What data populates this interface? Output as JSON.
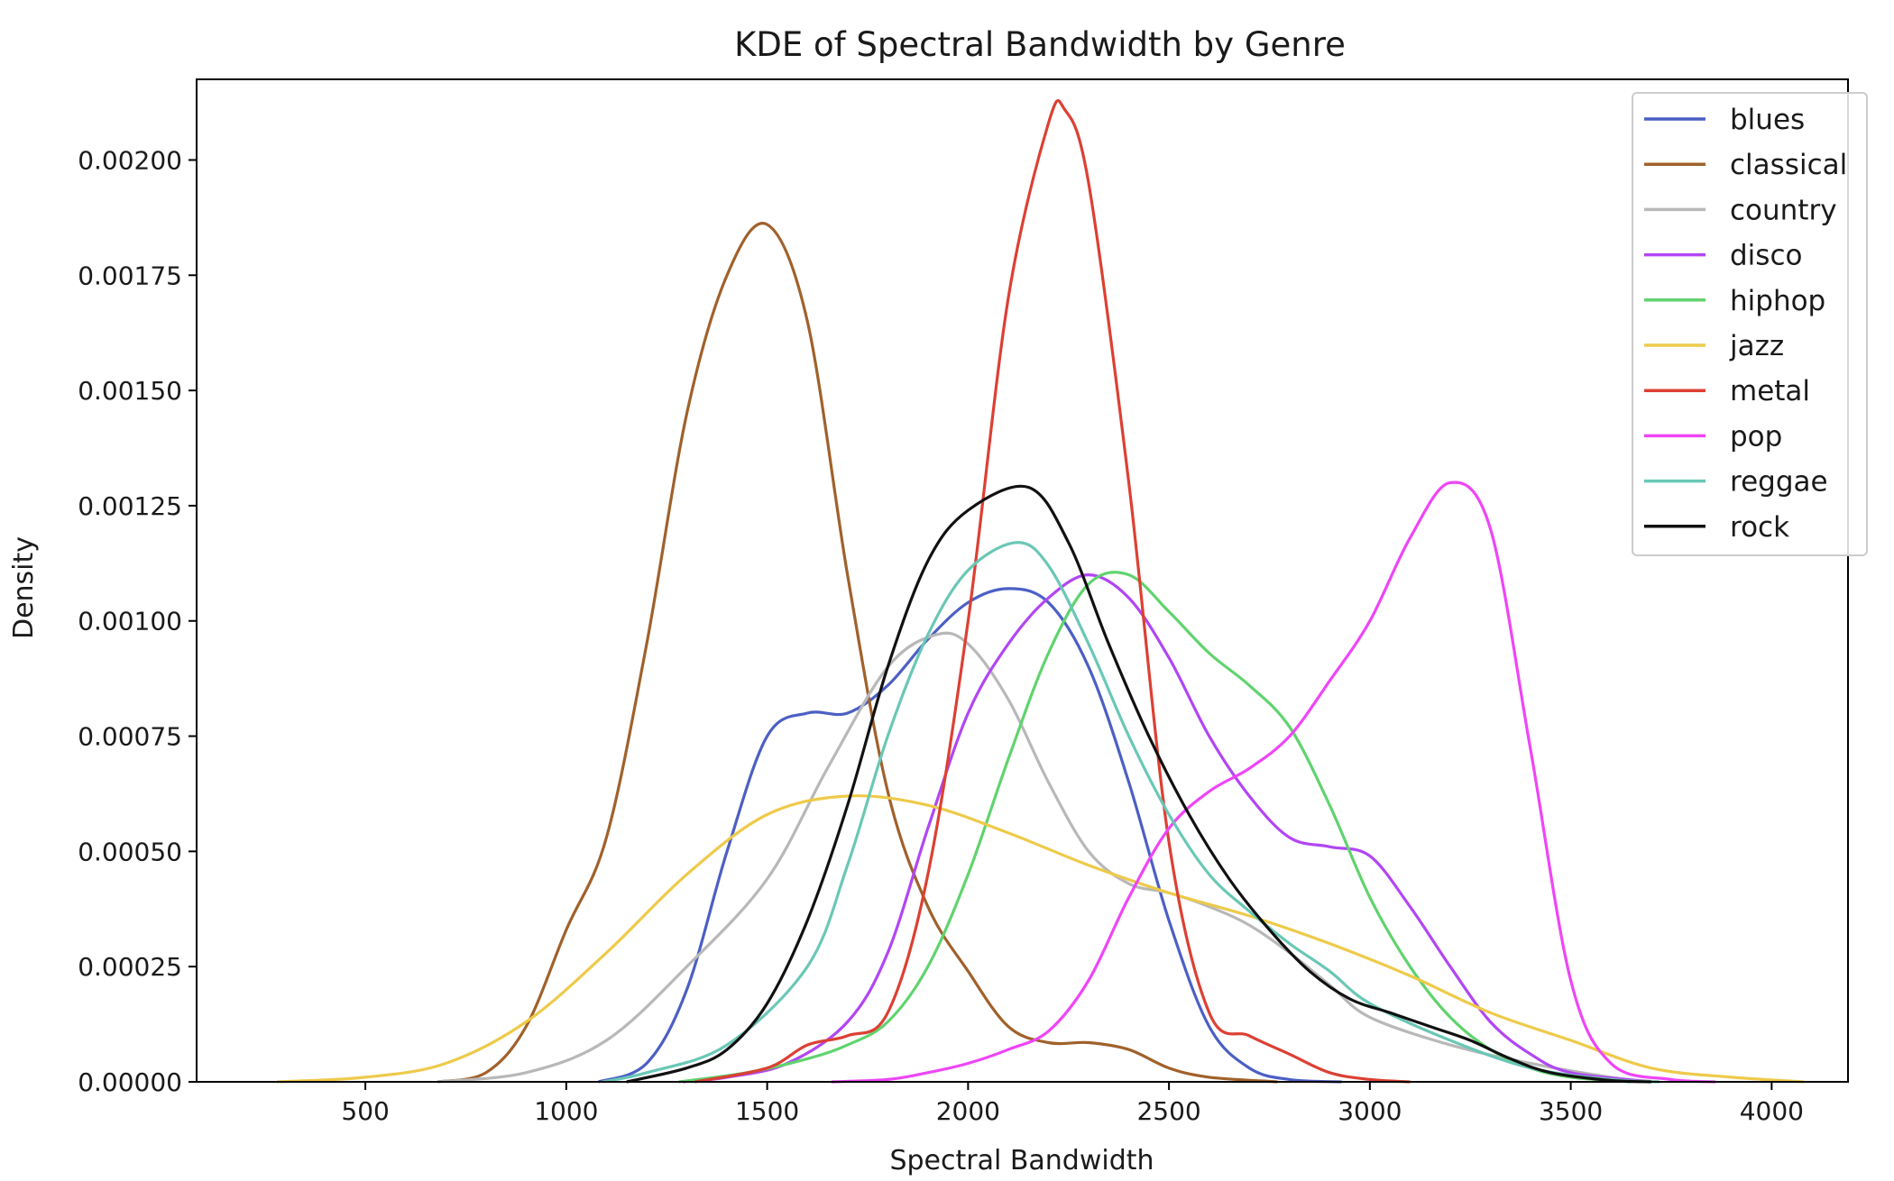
{
  "chart_data": {
    "type": "line",
    "title": "KDE of Spectral Bandwidth by Genre",
    "xlabel": "Spectral Bandwidth",
    "ylabel": "Density",
    "xlim": [
      80,
      4190
    ],
    "ylim": [
      0,
      0.002175
    ],
    "xticks": [
      500,
      1000,
      1500,
      2000,
      2500,
      3000,
      3500,
      4000
    ],
    "xtick_labels": [
      "500",
      "1000",
      "1500",
      "2000",
      "2500",
      "3000",
      "3500",
      "4000"
    ],
    "yticks": [
      0,
      0.00025,
      0.0005,
      0.00075,
      0.001,
      0.00125,
      0.0015,
      0.00175,
      0.002
    ],
    "ytick_labels": [
      "0.00000",
      "0.00025",
      "0.00050",
      "0.00075",
      "0.00100",
      "0.00125",
      "0.00150",
      "0.00175",
      "0.00200"
    ],
    "grid": false,
    "legend_position": "top-right",
    "series": [
      {
        "name": "blues",
        "color": "#4c5fc4",
        "points": [
          [
            1080,
            0
          ],
          [
            1200,
            4e-05
          ],
          [
            1300,
            0.0002
          ],
          [
            1400,
            0.0005
          ],
          [
            1500,
            0.00075
          ],
          [
            1600,
            0.0008
          ],
          [
            1700,
            0.0008
          ],
          [
            1800,
            0.00086
          ],
          [
            1900,
            0.00096
          ],
          [
            2000,
            0.00104
          ],
          [
            2100,
            0.00107
          ],
          [
            2200,
            0.00104
          ],
          [
            2300,
            0.0009
          ],
          [
            2400,
            0.00065
          ],
          [
            2500,
            0.00035
          ],
          [
            2600,
            0.00012
          ],
          [
            2700,
            3e-05
          ],
          [
            2800,
            5e-06
          ],
          [
            2930,
            0
          ]
        ]
      },
      {
        "name": "classical",
        "color": "#a0612b",
        "points": [
          [
            680,
            0
          ],
          [
            800,
            2e-05
          ],
          [
            900,
            0.00012
          ],
          [
            1000,
            0.00033
          ],
          [
            1100,
            0.00053
          ],
          [
            1200,
            0.00095
          ],
          [
            1300,
            0.00145
          ],
          [
            1400,
            0.00175
          ],
          [
            1500,
            0.00186
          ],
          [
            1600,
            0.00165
          ],
          [
            1700,
            0.0011
          ],
          [
            1800,
            0.00063
          ],
          [
            1900,
            0.00038
          ],
          [
            2000,
            0.00024
          ],
          [
            2100,
            0.00012
          ],
          [
            2200,
            8.5e-05
          ],
          [
            2300,
            8.5e-05
          ],
          [
            2400,
            7e-05
          ],
          [
            2500,
            3e-05
          ],
          [
            2600,
            1e-05
          ],
          [
            2770,
            0
          ]
        ]
      },
      {
        "name": "country",
        "color": "#b8b8b8",
        "points": [
          [
            680,
            0
          ],
          [
            900,
            2e-05
          ],
          [
            1100,
            9e-05
          ],
          [
            1300,
            0.00025
          ],
          [
            1500,
            0.00044
          ],
          [
            1650,
            0.00068
          ],
          [
            1800,
            0.0009
          ],
          [
            1920,
            0.00097
          ],
          [
            2000,
            0.00095
          ],
          [
            2100,
            0.00083
          ],
          [
            2200,
            0.00065
          ],
          [
            2300,
            0.0005
          ],
          [
            2400,
            0.00043
          ],
          [
            2500,
            0.00041
          ],
          [
            2600,
            0.00038
          ],
          [
            2700,
            0.00034
          ],
          [
            2800,
            0.00028
          ],
          [
            2900,
            0.00021
          ],
          [
            3000,
            0.00014
          ],
          [
            3200,
            8e-05
          ],
          [
            3400,
            4e-05
          ],
          [
            3600,
            1e-05
          ],
          [
            3720,
            0
          ]
        ]
      },
      {
        "name": "disco",
        "color": "#b146f4",
        "points": [
          [
            1290,
            0
          ],
          [
            1400,
            1e-05
          ],
          [
            1550,
            4e-05
          ],
          [
            1700,
            0.00013
          ],
          [
            1800,
            0.00028
          ],
          [
            1900,
            0.00055
          ],
          [
            2000,
            0.0008
          ],
          [
            2100,
            0.00095
          ],
          [
            2200,
            0.00105
          ],
          [
            2300,
            0.0011
          ],
          [
            2400,
            0.00105
          ],
          [
            2500,
            0.00092
          ],
          [
            2600,
            0.00075
          ],
          [
            2700,
            0.00062
          ],
          [
            2800,
            0.00053
          ],
          [
            2900,
            0.00051
          ],
          [
            3000,
            0.00049
          ],
          [
            3100,
            0.00038
          ],
          [
            3200,
            0.00025
          ],
          [
            3300,
            0.00013
          ],
          [
            3400,
            6e-05
          ],
          [
            3500,
            2e-05
          ],
          [
            3700,
            0
          ]
        ]
      },
      {
        "name": "hiphop",
        "color": "#60d36e",
        "points": [
          [
            1280,
            0
          ],
          [
            1450,
            2e-05
          ],
          [
            1600,
            5e-05
          ],
          [
            1700,
            8e-05
          ],
          [
            1800,
            0.00013
          ],
          [
            1900,
            0.00025
          ],
          [
            2000,
            0.00045
          ],
          [
            2100,
            0.0007
          ],
          [
            2200,
            0.00093
          ],
          [
            2300,
            0.00108
          ],
          [
            2400,
            0.0011
          ],
          [
            2500,
            0.00102
          ],
          [
            2600,
            0.00093
          ],
          [
            2700,
            0.00086
          ],
          [
            2800,
            0.00077
          ],
          [
            2900,
            0.0006
          ],
          [
            3000,
            0.0004
          ],
          [
            3100,
            0.00025
          ],
          [
            3200,
            0.00014
          ],
          [
            3300,
            7e-05
          ],
          [
            3400,
            3e-05
          ],
          [
            3500,
            1e-05
          ],
          [
            3650,
            0
          ]
        ]
      },
      {
        "name": "jazz",
        "color": "#eeca4a",
        "points": [
          [
            280,
            0
          ],
          [
            500,
            1e-05
          ],
          [
            700,
            4e-05
          ],
          [
            900,
            0.00013
          ],
          [
            1100,
            0.00028
          ],
          [
            1300,
            0.00045
          ],
          [
            1500,
            0.00058
          ],
          [
            1700,
            0.00062
          ],
          [
            1900,
            0.0006
          ],
          [
            2100,
            0.00054
          ],
          [
            2300,
            0.00047
          ],
          [
            2500,
            0.00041
          ],
          [
            2700,
            0.00036
          ],
          [
            2900,
            0.0003
          ],
          [
            3100,
            0.00023
          ],
          [
            3300,
            0.00015
          ],
          [
            3500,
            9e-05
          ],
          [
            3700,
            3e-05
          ],
          [
            3900,
            1e-05
          ],
          [
            4080,
            0
          ]
        ]
      },
      {
        "name": "metal",
        "color": "#dc4033",
        "points": [
          [
            1320,
            0
          ],
          [
            1500,
            3e-05
          ],
          [
            1600,
            8e-05
          ],
          [
            1700,
            0.0001
          ],
          [
            1800,
            0.00015
          ],
          [
            1900,
            0.00045
          ],
          [
            2000,
            0.001
          ],
          [
            2100,
            0.0017
          ],
          [
            2200,
            0.00208
          ],
          [
            2240,
            0.00211
          ],
          [
            2300,
            0.00195
          ],
          [
            2400,
            0.0013
          ],
          [
            2500,
            0.00052
          ],
          [
            2600,
            0.00015
          ],
          [
            2700,
            0.0001
          ],
          [
            2800,
            6e-05
          ],
          [
            2900,
            2e-05
          ],
          [
            3000,
            5e-06
          ],
          [
            3100,
            0
          ]
        ]
      },
      {
        "name": "pop",
        "color": "#ee45f7",
        "points": [
          [
            1660,
            0
          ],
          [
            1800,
            5e-06
          ],
          [
            1900,
            2e-05
          ],
          [
            2000,
            4e-05
          ],
          [
            2100,
            7e-05
          ],
          [
            2200,
            0.00011
          ],
          [
            2300,
            0.00022
          ],
          [
            2400,
            0.0004
          ],
          [
            2500,
            0.00055
          ],
          [
            2600,
            0.00063
          ],
          [
            2700,
            0.00068
          ],
          [
            2800,
            0.00075
          ],
          [
            2900,
            0.00087
          ],
          [
            3000,
            0.001
          ],
          [
            3100,
            0.00118
          ],
          [
            3200,
            0.0013
          ],
          [
            3300,
            0.0012
          ],
          [
            3400,
            0.00072
          ],
          [
            3500,
            0.00022
          ],
          [
            3600,
            4e-05
          ],
          [
            3750,
            5e-06
          ],
          [
            3860,
            0
          ]
        ]
      },
      {
        "name": "reggae",
        "color": "#6ac7b6",
        "points": [
          [
            1090,
            0
          ],
          [
            1200,
            2e-05
          ],
          [
            1400,
            8e-05
          ],
          [
            1600,
            0.00025
          ],
          [
            1700,
            0.00047
          ],
          [
            1800,
            0.00075
          ],
          [
            1900,
            0.00097
          ],
          [
            2000,
            0.00111
          ],
          [
            2120,
            0.00117
          ],
          [
            2200,
            0.00112
          ],
          [
            2300,
            0.00095
          ],
          [
            2400,
            0.00075
          ],
          [
            2500,
            0.00058
          ],
          [
            2600,
            0.00045
          ],
          [
            2700,
            0.00037
          ],
          [
            2800,
            0.0003
          ],
          [
            2900,
            0.00024
          ],
          [
            3000,
            0.00017
          ],
          [
            3200,
            9e-05
          ],
          [
            3400,
            3e-05
          ],
          [
            3600,
            5e-06
          ],
          [
            3720,
            0
          ]
        ]
      },
      {
        "name": "rock",
        "color": "#111111",
        "points": [
          [
            1150,
            0
          ],
          [
            1300,
            3e-05
          ],
          [
            1400,
            7e-05
          ],
          [
            1500,
            0.00017
          ],
          [
            1600,
            0.00035
          ],
          [
            1700,
            0.0006
          ],
          [
            1800,
            0.0009
          ],
          [
            1900,
            0.00113
          ],
          [
            2000,
            0.00124
          ],
          [
            2150,
            0.00129
          ],
          [
            2250,
            0.00117
          ],
          [
            2350,
            0.00095
          ],
          [
            2450,
            0.00075
          ],
          [
            2550,
            0.00058
          ],
          [
            2650,
            0.00044
          ],
          [
            2750,
            0.00033
          ],
          [
            2850,
            0.00024
          ],
          [
            2950,
            0.00018
          ],
          [
            3050,
            0.00015
          ],
          [
            3150,
            0.00012
          ],
          [
            3250,
            9e-05
          ],
          [
            3350,
            5e-05
          ],
          [
            3450,
            2e-05
          ],
          [
            3600,
            3e-06
          ],
          [
            3700,
            0
          ]
        ]
      }
    ]
  }
}
